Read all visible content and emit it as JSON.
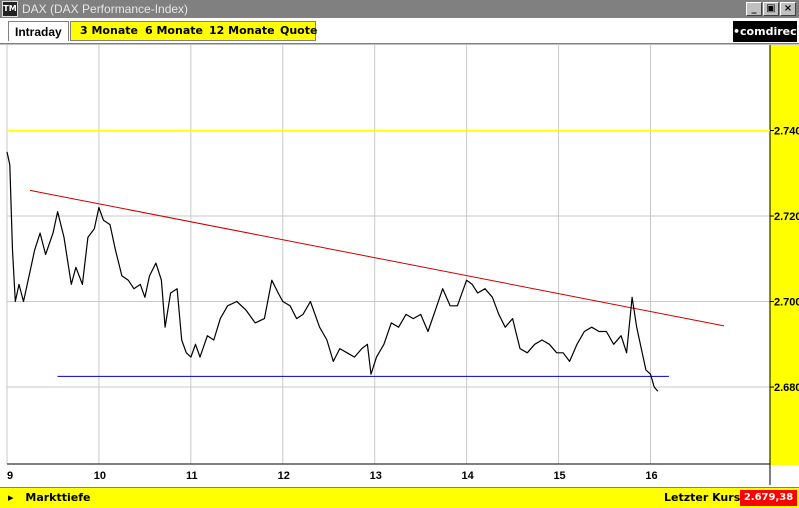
{
  "window": {
    "title": "DAX (DAX Performance-Index)",
    "icon_label": "TM",
    "controls": [
      "_",
      "▣",
      "×"
    ]
  },
  "tabs": {
    "active": "Intraday",
    "items": [
      "3 Monate",
      "6 Monate",
      "12 Monate",
      "Quote"
    ]
  },
  "brand": "•comdirect",
  "status": {
    "marker": "▸",
    "left_label": "Markttiefe",
    "last_price_label": "Letzter Kurs",
    "last_price_value": "2.679,38"
  },
  "colors": {
    "price_line": "#000000",
    "resistance": "#cc0000",
    "support": "#0000cc",
    "highlight_level": "#ffff00",
    "grid": "#c8c8c8"
  },
  "chart_data": {
    "type": "line",
    "x_ticks": [
      "9",
      "10",
      "11",
      "12",
      "13",
      "14",
      "15",
      "16"
    ],
    "y_ticks": [
      "2.680",
      "2.700",
      "2.720",
      "2.740"
    ],
    "ylim": [
      2662,
      2760
    ],
    "xlim": [
      9,
      17.3
    ],
    "highlight_level": 2740,
    "support": {
      "x": [
        9.55,
        16.2
      ],
      "y": [
        2682.5,
        2682.5
      ]
    },
    "resistance": {
      "x": [
        9.25,
        16.8
      ],
      "y": [
        2726,
        2694.3
      ]
    },
    "series": [
      {
        "values": [
          [
            9.0,
            2735
          ],
          [
            9.03,
            2732
          ],
          [
            9.06,
            2712
          ],
          [
            9.09,
            2700
          ],
          [
            9.13,
            2704
          ],
          [
            9.18,
            2700
          ],
          [
            9.25,
            2707
          ],
          [
            9.3,
            2712
          ],
          [
            9.36,
            2716
          ],
          [
            9.42,
            2711
          ],
          [
            9.5,
            2716
          ],
          [
            9.55,
            2721
          ],
          [
            9.62,
            2715
          ],
          [
            9.7,
            2704
          ],
          [
            9.75,
            2708
          ],
          [
            9.82,
            2704
          ],
          [
            9.88,
            2715
          ],
          [
            9.95,
            2717
          ],
          [
            10.0,
            2722
          ],
          [
            10.05,
            2719
          ],
          [
            10.12,
            2718
          ],
          [
            10.18,
            2712
          ],
          [
            10.25,
            2706
          ],
          [
            10.32,
            2705
          ],
          [
            10.38,
            2703
          ],
          [
            10.45,
            2704
          ],
          [
            10.5,
            2701
          ],
          [
            10.55,
            2706
          ],
          [
            10.62,
            2709
          ],
          [
            10.68,
            2705
          ],
          [
            10.72,
            2694
          ],
          [
            10.78,
            2702
          ],
          [
            10.85,
            2703
          ],
          [
            10.9,
            2691
          ],
          [
            10.95,
            2688
          ],
          [
            11.0,
            2687
          ],
          [
            11.05,
            2690
          ],
          [
            11.1,
            2687
          ],
          [
            11.18,
            2692
          ],
          [
            11.25,
            2691
          ],
          [
            11.32,
            2696
          ],
          [
            11.4,
            2699
          ],
          [
            11.5,
            2700
          ],
          [
            11.6,
            2698
          ],
          [
            11.7,
            2695
          ],
          [
            11.8,
            2696
          ],
          [
            11.88,
            2705
          ],
          [
            11.95,
            2702
          ],
          [
            12.0,
            2700
          ],
          [
            12.08,
            2699
          ],
          [
            12.15,
            2696
          ],
          [
            12.22,
            2697
          ],
          [
            12.3,
            2700
          ],
          [
            12.4,
            2694
          ],
          [
            12.48,
            2691
          ],
          [
            12.55,
            2686
          ],
          [
            12.62,
            2689
          ],
          [
            12.7,
            2688
          ],
          [
            12.78,
            2687
          ],
          [
            12.86,
            2689
          ],
          [
            12.92,
            2690
          ],
          [
            12.96,
            2683
          ],
          [
            13.02,
            2687
          ],
          [
            13.1,
            2690
          ],
          [
            13.18,
            2695
          ],
          [
            13.26,
            2694
          ],
          [
            13.34,
            2697
          ],
          [
            13.42,
            2696
          ],
          [
            13.5,
            2697
          ],
          [
            13.58,
            2693
          ],
          [
            13.66,
            2698
          ],
          [
            13.74,
            2703
          ],
          [
            13.82,
            2699
          ],
          [
            13.9,
            2699
          ],
          [
            14.0,
            2705
          ],
          [
            14.06,
            2704
          ],
          [
            14.12,
            2702
          ],
          [
            14.2,
            2703
          ],
          [
            14.28,
            2701
          ],
          [
            14.35,
            2697
          ],
          [
            14.42,
            2694
          ],
          [
            14.5,
            2696
          ],
          [
            14.58,
            2689
          ],
          [
            14.66,
            2688
          ],
          [
            14.74,
            2690
          ],
          [
            14.82,
            2691
          ],
          [
            14.9,
            2690
          ],
          [
            14.98,
            2688
          ],
          [
            15.05,
            2688
          ],
          [
            15.12,
            2686
          ],
          [
            15.2,
            2690
          ],
          [
            15.28,
            2693
          ],
          [
            15.36,
            2694
          ],
          [
            15.44,
            2693
          ],
          [
            15.52,
            2693
          ],
          [
            15.6,
            2690
          ],
          [
            15.68,
            2692
          ],
          [
            15.74,
            2688
          ],
          [
            15.8,
            2701
          ],
          [
            15.85,
            2694
          ],
          [
            15.9,
            2689
          ],
          [
            15.95,
            2684
          ],
          [
            16.0,
            2683
          ],
          [
            16.04,
            2680
          ],
          [
            16.08,
            2679
          ]
        ]
      }
    ]
  }
}
